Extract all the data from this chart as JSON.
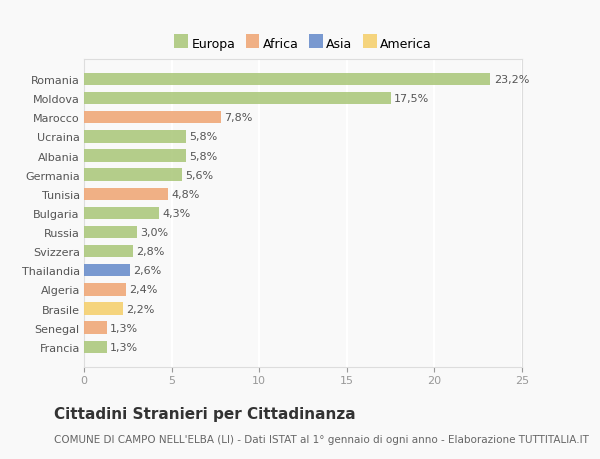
{
  "countries": [
    "Francia",
    "Senegal",
    "Brasile",
    "Algeria",
    "Thailandia",
    "Svizzera",
    "Russia",
    "Bulgaria",
    "Tunisia",
    "Germania",
    "Albania",
    "Ucraina",
    "Marocco",
    "Moldova",
    "Romania"
  ],
  "values": [
    1.3,
    1.3,
    2.2,
    2.4,
    2.6,
    2.8,
    3.0,
    4.3,
    4.8,
    5.6,
    5.8,
    5.8,
    7.8,
    17.5,
    23.2
  ],
  "labels": [
    "1,3%",
    "1,3%",
    "2,2%",
    "2,4%",
    "2,6%",
    "2,8%",
    "3,0%",
    "4,3%",
    "4,8%",
    "5,6%",
    "5,8%",
    "5,8%",
    "7,8%",
    "17,5%",
    "23,2%"
  ],
  "continents": [
    "Europa",
    "Africa",
    "America",
    "Africa",
    "Asia",
    "Europa",
    "Europa",
    "Europa",
    "Africa",
    "Europa",
    "Europa",
    "Europa",
    "Africa",
    "Europa",
    "Europa"
  ],
  "colors": {
    "Europa": "#adc97e",
    "Africa": "#f0a878",
    "Asia": "#6b8fcc",
    "America": "#f5d070"
  },
  "legend_order": [
    "Europa",
    "Africa",
    "Asia",
    "America"
  ],
  "title": "Cittadini Stranieri per Cittadinanza",
  "subtitle": "COMUNE DI CAMPO NELL'ELBA (LI) - Dati ISTAT al 1° gennaio di ogni anno - Elaborazione TUTTITALIA.IT",
  "xlim": [
    0,
    25
  ],
  "xticks": [
    0,
    5,
    10,
    15,
    20,
    25
  ],
  "background_color": "#f9f9f9",
  "grid_color": "#ffffff",
  "bar_height": 0.65,
  "title_fontsize": 11,
  "subtitle_fontsize": 7.5,
  "tick_fontsize": 8,
  "label_fontsize": 8,
  "legend_fontsize": 9
}
